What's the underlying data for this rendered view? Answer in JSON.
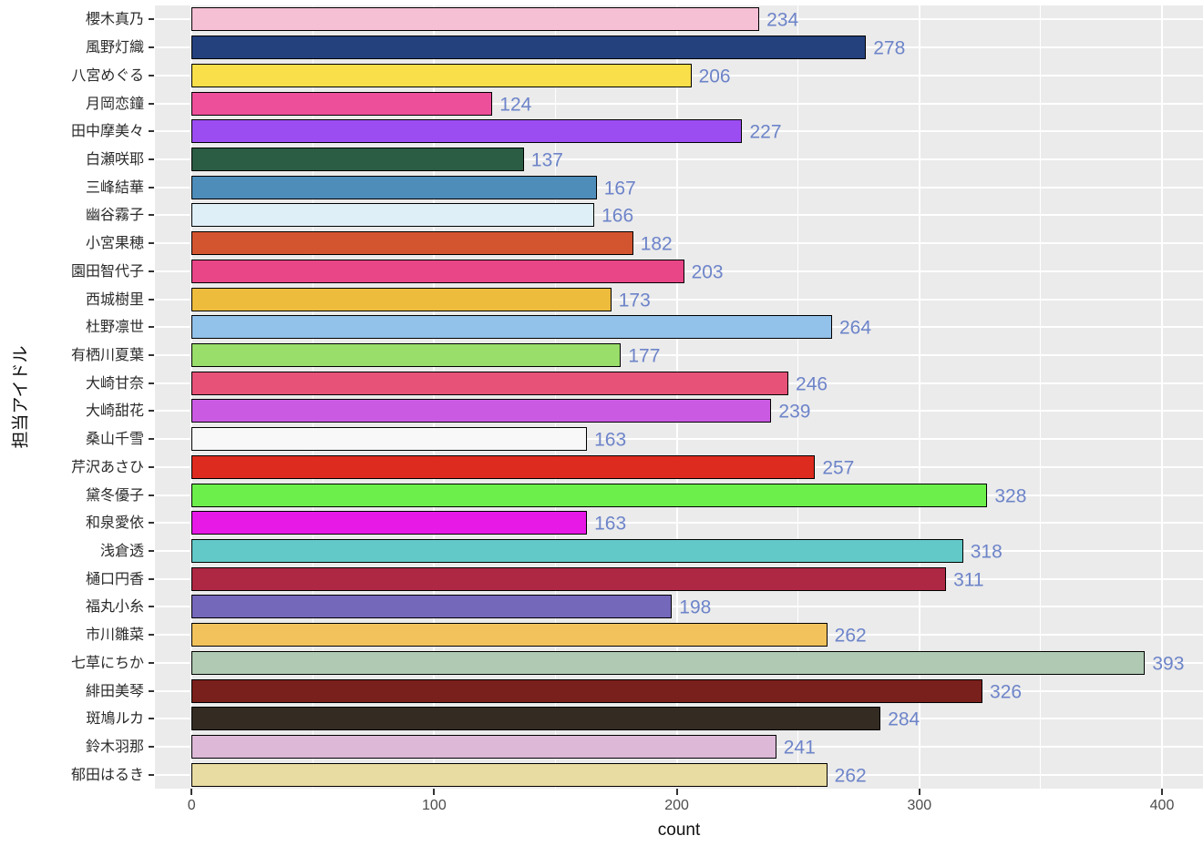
{
  "chart_data": {
    "type": "bar",
    "orientation": "horizontal",
    "title": "",
    "xlabel": "count",
    "ylabel": "担当アイドル",
    "categories": [
      "櫻木真乃",
      "風野灯織",
      "八宮めぐる",
      "月岡恋鐘",
      "田中摩美々",
      "白瀬咲耶",
      "三峰結華",
      "幽谷霧子",
      "小宮果穂",
      "園田智代子",
      "西城樹里",
      "杜野凛世",
      "有栖川夏葉",
      "大崎甘奈",
      "大崎甜花",
      "桑山千雪",
      "芹沢あさひ",
      "黛冬優子",
      "和泉愛依",
      "浅倉透",
      "樋口円香",
      "福丸小糸",
      "市川雛菜",
      "七草にちか",
      "緋田美琴",
      "斑鳩ルカ",
      "鈴木羽那",
      "郁田はるき"
    ],
    "values": [
      234,
      278,
      206,
      124,
      227,
      137,
      167,
      166,
      182,
      203,
      173,
      264,
      177,
      246,
      239,
      163,
      257,
      328,
      163,
      318,
      311,
      198,
      262,
      393,
      326,
      284,
      241,
      262
    ],
    "bar_colors": [
      "#F5BFD4",
      "#24417D",
      "#F9DF4A",
      "#EE4F9B",
      "#9C4DF2",
      "#2B5C44",
      "#4E8CBA",
      "#DFEFF8",
      "#D35530",
      "#E84687",
      "#EEBC3D",
      "#92C1E9",
      "#99DD6B",
      "#E65278",
      "#CB5AE3",
      "#F8F8F8",
      "#DD2B1F",
      "#6CEF4B",
      "#E719E7",
      "#63C8C8",
      "#AE2843",
      "#7468BB",
      "#F2C35D",
      "#AFC9B3",
      "#7A201C",
      "#342B23",
      "#DDB9D7",
      "#E9DCA2"
    ],
    "x_tick_labels": [
      "0",
      "100",
      "200",
      "300",
      "400"
    ],
    "x_ticks": [
      0,
      100,
      200,
      300,
      400
    ],
    "x_minor_ticks": [
      50,
      150,
      250,
      350
    ],
    "xlim": [
      -15.1,
      416.9
    ],
    "grid": true,
    "legend": "none",
    "styles": {
      "panel_bg": "#EBEBEB",
      "grid_color": "#FFFFFF",
      "bar_border_color": "#000000",
      "value_label_color": "#6D84C9",
      "axis_text_color": "#4D4D4D",
      "category_text_color": "#2B2B2B",
      "axis_title_color": "#111111",
      "tick_mark_color": "#333333"
    }
  }
}
